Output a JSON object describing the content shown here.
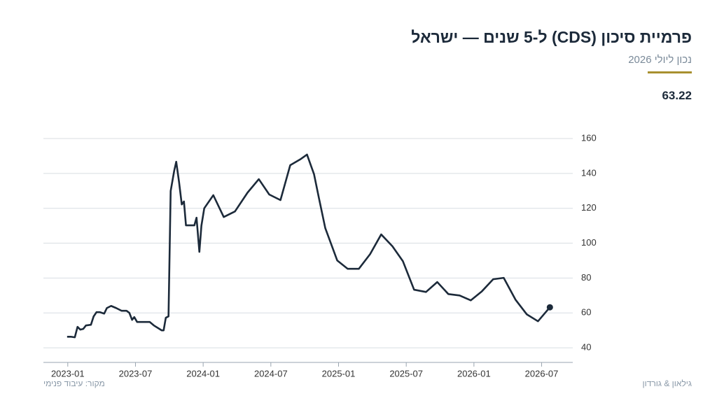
{
  "chart_data": {
    "type": "line",
    "title": "פרמיית סיכון (CDS) ל-5 שנים — ישראל",
    "subtitle": "נכון ליולי 2026",
    "source": "מקור: עיבוד פנימי",
    "brand": "גילאון & גורדון",
    "color": "#1c2a3a",
    "grid": true,
    "x": [
      2022.995,
      2023.026,
      2023.052,
      2023.072,
      2023.093,
      2023.114,
      2023.134,
      2023.171,
      2023.191,
      2023.212,
      2023.238,
      2023.269,
      2023.289,
      2023.32,
      2023.357,
      2023.398,
      2023.434,
      2023.455,
      2023.475,
      2023.491,
      2023.512,
      2023.563,
      2023.605,
      2023.636,
      2023.677,
      2023.693,
      2023.708,
      2023.724,
      2023.744,
      2023.76,
      2023.786,
      2023.801,
      2023.822,
      2023.842,
      2023.858,
      2023.873,
      2023.899,
      2023.935,
      2023.951,
      2023.972,
      2023.987,
      2024.008,
      2024.075,
      2024.152,
      2024.235,
      2024.328,
      2024.411,
      2024.488,
      2024.571,
      2024.643,
      2024.716,
      2024.767,
      2024.819,
      2024.855,
      2024.902,
      2024.99,
      2025.067,
      2025.15,
      2025.233,
      2025.315,
      2025.398,
      2025.475,
      2025.558,
      2025.646,
      2025.729,
      2025.811,
      2025.894,
      2025.977,
      2026.059,
      2026.142,
      2026.22,
      2026.307,
      2026.39,
      2026.473,
      2026.561
    ],
    "values": [
      46.3,
      46.3,
      46,
      52,
      50.4,
      50.8,
      52.8,
      53.2,
      58,
      60.4,
      60.4,
      59.6,
      62.8,
      64,
      62.8,
      61.2,
      61.2,
      60,
      56,
      57.6,
      54.8,
      54.8,
      54.8,
      52.8,
      50.8,
      50,
      50,
      57.2,
      58,
      129.9,
      141.5,
      146.7,
      135,
      122.2,
      123.9,
      110.2,
      110.2,
      110.2,
      114.6,
      95,
      110,
      120,
      127.5,
      115,
      118.2,
      129,
      136.7,
      127.9,
      124.7,
      144.7,
      148,
      150.8,
      139.5,
      125.9,
      108.6,
      90.1,
      85.3,
      85.3,
      93.7,
      105,
      98.2,
      89.7,
      73.3,
      72,
      77.7,
      70.8,
      70,
      67.2,
      72.4,
      79.3,
      80.1,
      67.6,
      59.2,
      55.2,
      63.22
    ],
    "xlim": [
      2022.82,
      2026.73
    ],
    "xticks": [
      {
        "value": 2023.0,
        "label": "2023-01"
      },
      {
        "value": 2023.5,
        "label": "2023-07"
      },
      {
        "value": 2024.0,
        "label": "2024-01"
      },
      {
        "value": 2024.5,
        "label": "2024-07"
      },
      {
        "value": 2025.0,
        "label": "2025-01"
      },
      {
        "value": 2025.5,
        "label": "2025-07"
      },
      {
        "value": 2026.0,
        "label": "2026-01"
      },
      {
        "value": 2026.5,
        "label": "2026-07"
      }
    ],
    "ylim": [
      31.6,
      160
    ],
    "yticks": [
      40,
      60,
      80,
      100,
      120,
      140,
      160
    ]
  }
}
